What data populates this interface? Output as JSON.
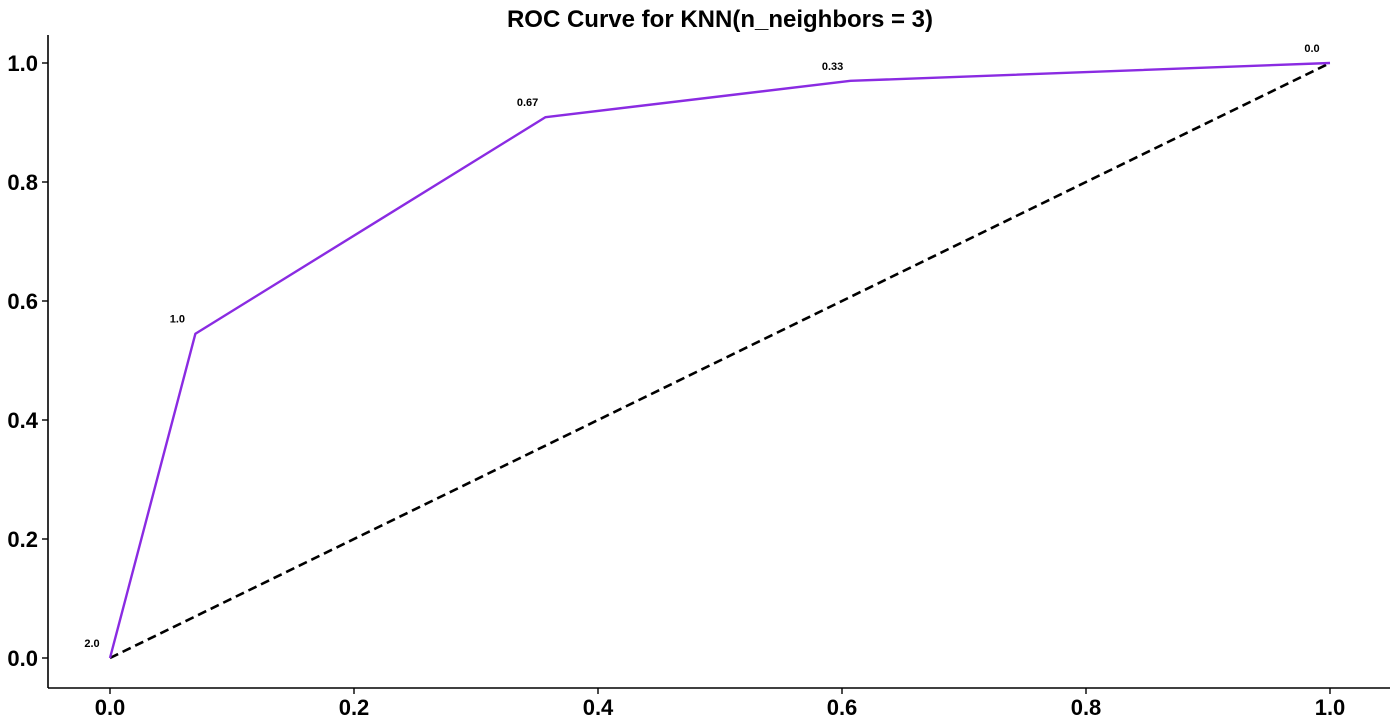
{
  "chart_data": {
    "type": "line",
    "title": "ROC Curve for KNN(n_neighbors = 3)",
    "xlabel": "",
    "ylabel": "",
    "xlim": [
      -0.05,
      1.05
    ],
    "ylim": [
      -0.05,
      1.05
    ],
    "grid": false,
    "x_ticks": [
      "0.0",
      "0.2",
      "0.4",
      "0.6",
      "0.8",
      "1.0"
    ],
    "y_ticks": [
      "0.0",
      "0.2",
      "0.4",
      "0.6",
      "0.8",
      "1.0"
    ],
    "series": [
      {
        "color": "#8a2be2",
        "line_style": "solid",
        "x": [
          0.0,
          0.07,
          0.357,
          0.607,
          1.0
        ],
        "y": [
          0.0,
          0.545,
          0.909,
          0.97,
          1.0
        ],
        "point_labels": [
          "2.0",
          "1.0",
          "0.67",
          "0.33",
          "0.0"
        ]
      },
      {
        "color": "#000000",
        "line_style": "dashed",
        "x": [
          0.0,
          1.0
        ],
        "y": [
          0.0,
          1.0
        ]
      }
    ]
  }
}
